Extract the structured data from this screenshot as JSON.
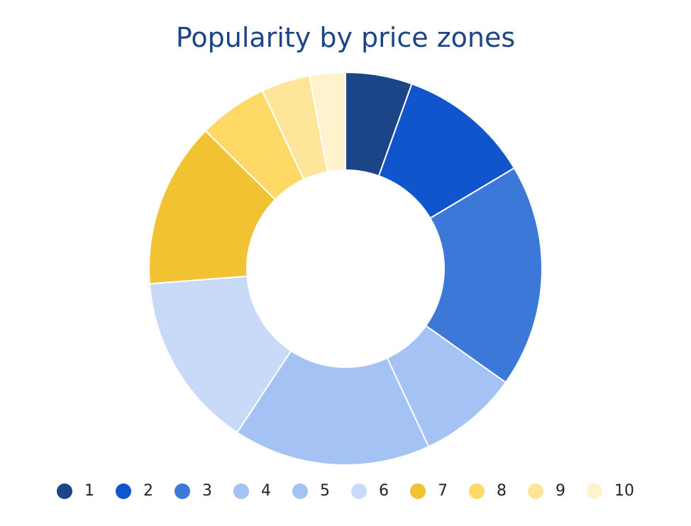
{
  "chart_data": {
    "type": "pie",
    "title": "Popularity by price zones",
    "donut": true,
    "legend_position": "bottom",
    "categories": [
      "1",
      "2",
      "3",
      "4",
      "5",
      "6",
      "7",
      "8",
      "9",
      "10"
    ],
    "values": [
      5.6,
      11.2,
      18.8,
      8.4,
      16.6,
      14.8,
      13.9,
      5.8,
      4.1,
      3.0
    ],
    "colors": [
      "#1c4587",
      "#1155cc",
      "#3c78d8",
      "#a4c2f4",
      "#a4c2f4",
      "#c9daf8",
      "#f1c232",
      "#ffd966",
      "#ffe599",
      "#fff2cc"
    ]
  }
}
